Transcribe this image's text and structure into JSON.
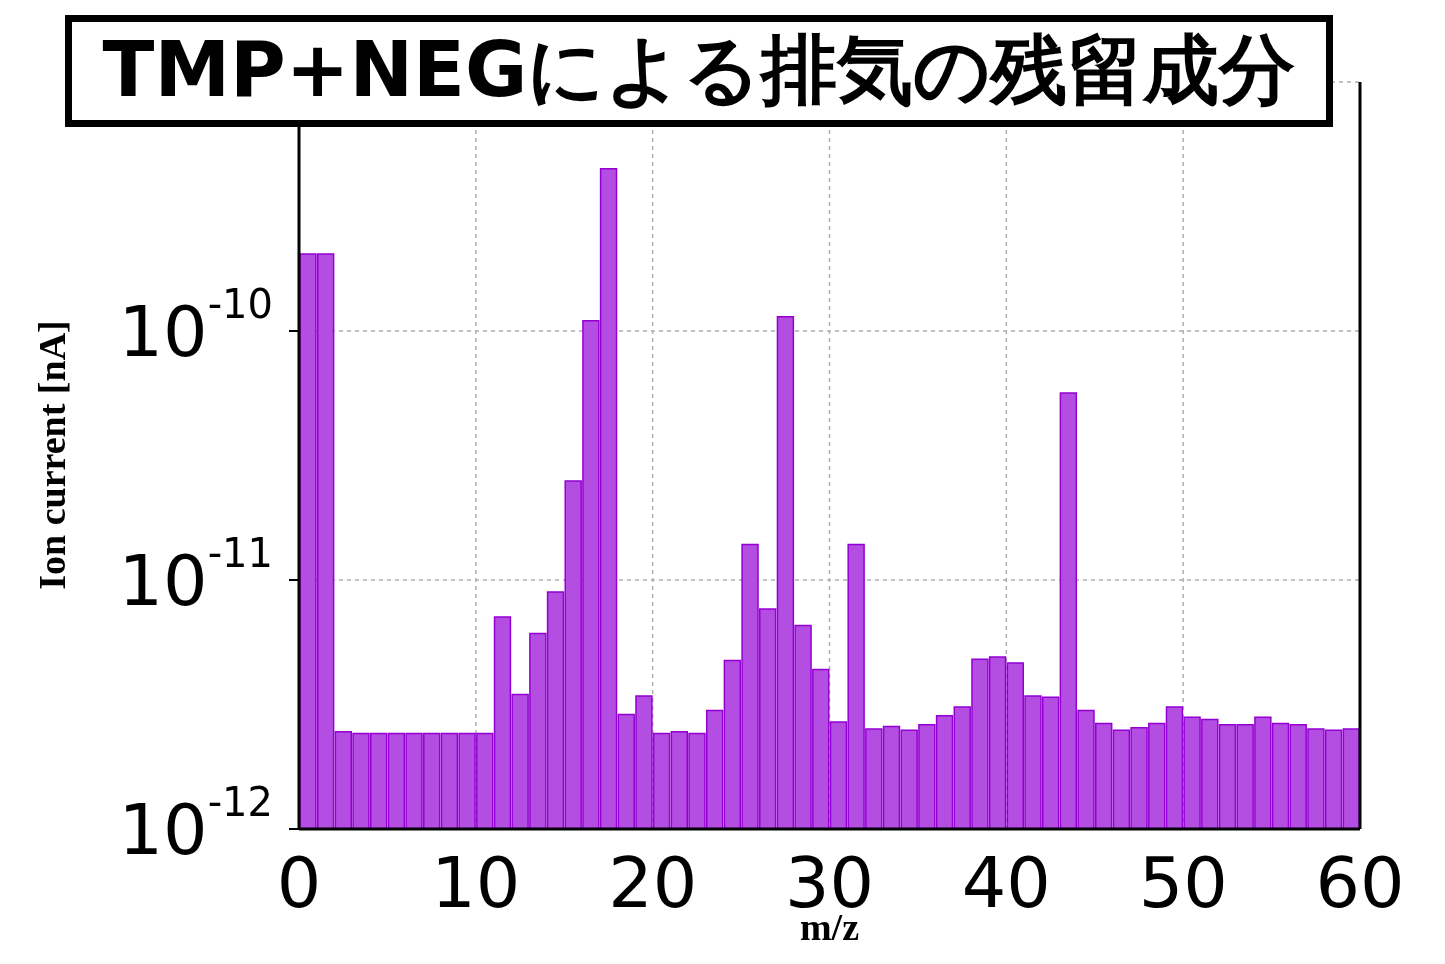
{
  "chart_data": {
    "type": "histogram",
    "title": "TMP+NEGによる排気の残留成分",
    "xlabel": "m/z",
    "ylabel": "Ion current [nA]",
    "bins": [
      0,
      1,
      2,
      3,
      4,
      5,
      6,
      7,
      8,
      9,
      10,
      11,
      12,
      13,
      14,
      15,
      16,
      17,
      18,
      19,
      20,
      21,
      22,
      23,
      24,
      25,
      26,
      27,
      28,
      29,
      30,
      31,
      32,
      33,
      34,
      35,
      36,
      37,
      38,
      39,
      40,
      41,
      42,
      43,
      44,
      45,
      46,
      47,
      48,
      49,
      50,
      51,
      52,
      53,
      54,
      55,
      56,
      57,
      58,
      59,
      60
    ],
    "values": [
      2.04e-10,
      2.04e-10,
      2.46e-12,
      2.42e-12,
      2.42e-12,
      2.42e-12,
      2.42e-12,
      2.42e-12,
      2.42e-12,
      2.42e-12,
      2.42e-12,
      7.1e-12,
      3.47e-12,
      6.1e-12,
      8.96e-12,
      2.5e-11,
      1.1e-10,
      4.48e-10,
      2.88e-12,
      3.42e-12,
      2.42e-12,
      2.46e-12,
      2.42e-12,
      2.99e-12,
      4.75e-12,
      1.39e-11,
      7.65e-12,
      1.14e-10,
      6.56e-12,
      4.37e-12,
      2.69e-12,
      1.39e-11,
      2.52e-12,
      2.58e-12,
      2.49e-12,
      2.62e-12,
      2.85e-12,
      3.09e-12,
      4.8e-12,
      4.91e-12,
      4.64e-12,
      3.42e-12,
      3.38e-12,
      5.63e-11,
      2.99e-12,
      2.65e-12,
      2.49e-12,
      2.55e-12,
      2.65e-12,
      3.09e-12,
      2.81e-12,
      2.75e-12,
      2.62e-12,
      2.62e-12,
      2.81e-12,
      2.65e-12,
      2.62e-12,
      2.52e-12,
      2.49e-12,
      2.52e-12
    ],
    "color": "#b44de2",
    "xlim": [
      0,
      60
    ],
    "xticks": [
      0,
      10,
      20,
      30,
      40,
      50,
      60
    ],
    "ylim": [
      1e-12,
      1e-09
    ],
    "log": true,
    "yticks": [
      {
        "value": 1e-12,
        "label": "10$^{-12}$"
      },
      {
        "value": 1e-11,
        "label": "10$^{-11}$"
      },
      {
        "value": 1e-10,
        "label": "10$^{-10}$"
      },
      {
        "value": 1e-09,
        "label": null
      }
    ],
    "grid": true
  }
}
